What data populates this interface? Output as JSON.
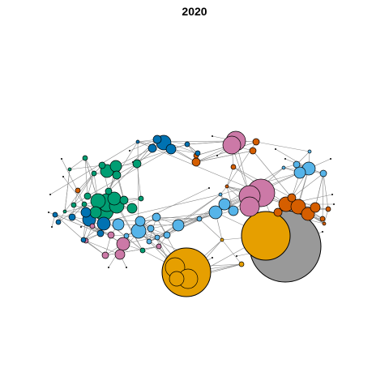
{
  "title": "2020",
  "palette": {
    "sky_blue": "#56B4E9",
    "blue": "#0072B2",
    "green": "#009E73",
    "pink": "#CC79A7",
    "orange": "#E69F00",
    "vermillion": "#D55E00",
    "gray": "#999999",
    "edge": "#8a8a8a",
    "node_stroke": "#000000"
  }
}
